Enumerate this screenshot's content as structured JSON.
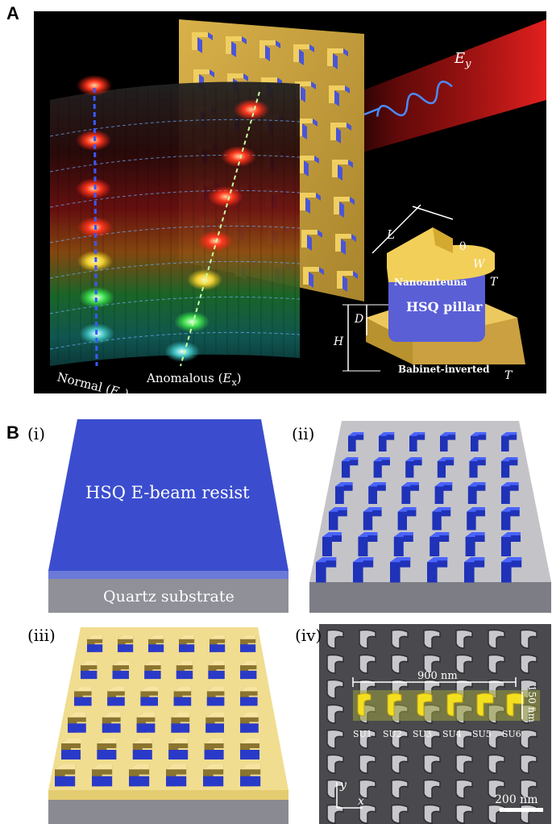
{
  "panel_a": {
    "label": "A",
    "beam_label": "E",
    "beam_label_sub": "y",
    "normal_label": "Normal (",
    "normal_label_var": "E",
    "normal_label_sub": "y",
    "normal_label_end": ")",
    "anomalous_label": "Anomalous (",
    "anomalous_label_var": "E",
    "anomalous_label_sub": "x",
    "anomalous_label_end": ")",
    "inset": {
      "L": "L",
      "theta": "θ",
      "W": "W",
      "T1": "T",
      "D": "D",
      "H": "H",
      "T2": "T",
      "nanoantenna": "Nanoanteuna",
      "pillar": "HSQ  pillar",
      "babinet": "Babinet-inverted"
    },
    "colors": {
      "gold": "#e8c25a",
      "hsq": "#5a5fd6",
      "beam": "#d01a1a"
    }
  },
  "panel_b": {
    "label": "B",
    "i": {
      "tag": "(i)",
      "resist": "HSQ E-beam resist",
      "substrate": "Quartz substrate"
    },
    "ii": {
      "tag": "(ii)"
    },
    "iii": {
      "tag": "(iii)"
    },
    "iv": {
      "tag": "(iv)",
      "width_label": "900 nm",
      "height_label": "150 nm",
      "units": [
        "SU1",
        "SU2",
        "SU3",
        "SU4",
        "SU5",
        "SU6"
      ],
      "axis_y": "y",
      "axis_x": "x",
      "scalebar": "200 nm"
    }
  }
}
